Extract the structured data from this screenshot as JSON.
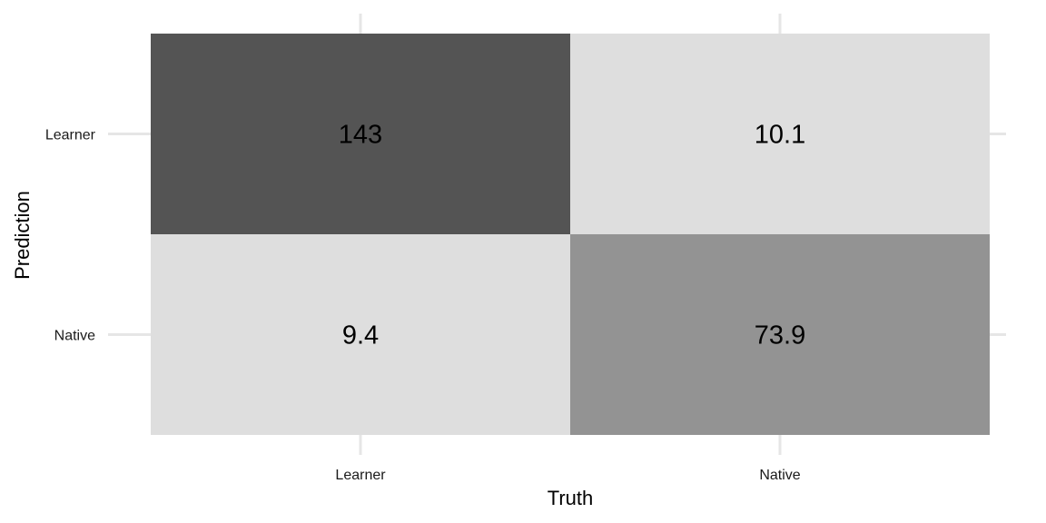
{
  "chart_data": {
    "type": "heatmap",
    "title": "",
    "xlabel": "Truth",
    "ylabel": "Prediction",
    "x_categories": [
      "Learner",
      "Native"
    ],
    "y_categories": [
      "Learner",
      "Native"
    ],
    "cells": [
      {
        "truth": "Learner",
        "prediction": "Learner",
        "value": 143,
        "label": "143",
        "color": "#545454"
      },
      {
        "truth": "Native",
        "prediction": "Learner",
        "value": 10.1,
        "label": "10.1",
        "color": "#dedede"
      },
      {
        "truth": "Learner",
        "prediction": "Native",
        "value": 9.4,
        "label": "9.4",
        "color": "#dedede"
      },
      {
        "truth": "Native",
        "prediction": "Native",
        "value": 73.9,
        "label": "73.9",
        "color": "#939393"
      }
    ],
    "grid": true,
    "legend": "none"
  }
}
